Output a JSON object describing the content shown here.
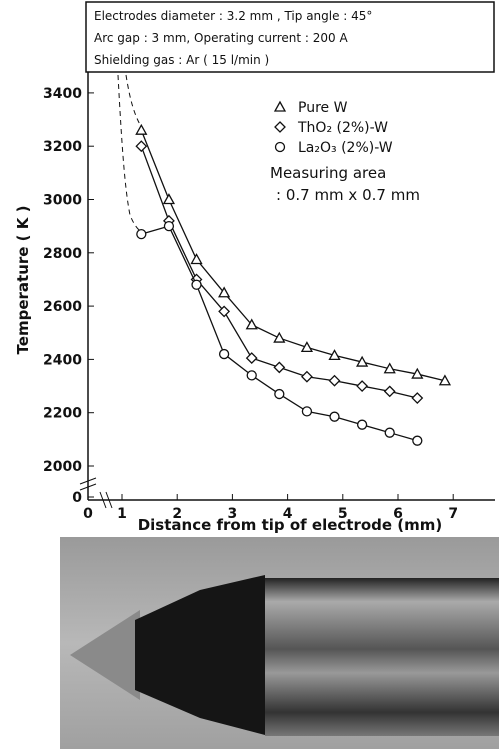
{
  "chart_data": {
    "type": "line",
    "header": [
      "Electrodes diameter : 3.2 mm , Tip angle : 45°",
      "Arc gap : 3 mm, Operating current : 200 A",
      "Shielding gas : Ar ( 15 l/min )"
    ],
    "xlabel": "Distance from tip of electrode (mm)",
    "ylabel": "Temperature ( K )",
    "annotation": [
      "Measuring area",
      ": 0.7 mm x 0.7 mm"
    ],
    "xlim": [
      0,
      7.5
    ],
    "xticks": [
      0,
      1,
      2,
      3,
      4,
      5,
      6,
      7
    ],
    "ylim": [
      0,
      3450
    ],
    "yticks": [
      0,
      2000,
      2200,
      2400,
      2600,
      2800,
      3000,
      3200,
      3400
    ],
    "series": [
      {
        "name": "Pure W",
        "marker": "triangle",
        "color": "#111",
        "x": [
          1.35,
          1.85,
          2.35,
          2.85,
          3.35,
          3.85,
          4.35,
          4.85,
          5.35,
          5.85,
          6.35,
          6.85
        ],
        "values": [
          3260,
          3000,
          2775,
          2650,
          2530,
          2480,
          2445,
          2415,
          2390,
          2365,
          2345,
          2320
        ]
      },
      {
        "name": "ThO₂ (2%)-W",
        "marker": "diamond",
        "color": "#111",
        "x": [
          1.35,
          1.85,
          2.35,
          2.85,
          3.35,
          3.85,
          4.35,
          4.85,
          5.35,
          5.85,
          6.35
        ],
        "values": [
          3200,
          2920,
          2700,
          2580,
          2405,
          2370,
          2335,
          2320,
          2300,
          2280,
          2255
        ]
      },
      {
        "name": "La₂O₃ (2%)-W",
        "marker": "circle",
        "color": "#111",
        "x": [
          1.35,
          1.85,
          2.35,
          2.85,
          3.35,
          3.85,
          4.35,
          4.85,
          5.35,
          5.85,
          6.35
        ],
        "values": [
          2870,
          2900,
          2680,
          2420,
          2340,
          2270,
          2205,
          2185,
          2155,
          2125,
          2095
        ]
      }
    ]
  }
}
